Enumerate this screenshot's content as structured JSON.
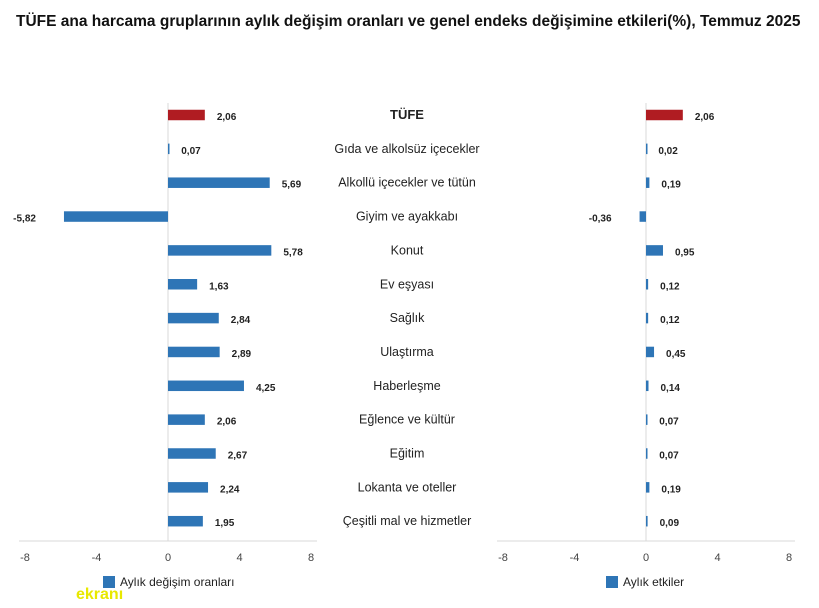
{
  "title": "TÜFE ana harcama gruplarının aylık değişim oranları ve genel endeks değişimine etkileri(%), Temmuz 2025",
  "colors": {
    "highlight": "#b01c22",
    "bar": "#2e75b6",
    "axis": "#d9d9d9",
    "text": "#222222"
  },
  "chart_data": {
    "type": "bar",
    "orientation": "horizontal",
    "categories": [
      "TÜFE",
      "Gıda ve alkolsüz içecekler",
      "Alkollü içecekler ve tütün",
      "Giyim ve ayakkabı",
      "Konut",
      "Ev eşyası",
      "Sağlık",
      "Ulaştırma",
      "Haberleşme",
      "Eğlence ve kültür",
      "Eğitim",
      "Lokanta ve oteller",
      "Çeşitli mal ve hizmetler"
    ],
    "highlight_category": "TÜFE",
    "panels": [
      {
        "legend": "Aylık değişim oranları",
        "values": [
          2.06,
          0.07,
          5.69,
          -5.82,
          5.78,
          1.63,
          2.84,
          2.89,
          4.25,
          2.06,
          2.67,
          2.24,
          1.95
        ],
        "labels": [
          "2,06",
          "0,07",
          "5,69",
          "-5,82",
          "5,78",
          "1,63",
          "2,84",
          "2,89",
          "4,25",
          "2,06",
          "2,67",
          "2,24",
          "1,95"
        ],
        "xlim": [
          -8,
          8
        ],
        "ticks": [
          "-8",
          "-4",
          "0",
          "4",
          "8"
        ]
      },
      {
        "legend": "Aylık etkiler",
        "values": [
          2.06,
          0.02,
          0.19,
          -0.36,
          0.95,
          0.12,
          0.12,
          0.45,
          0.14,
          0.07,
          0.07,
          0.19,
          0.09
        ],
        "labels": [
          "2,06",
          "0,02",
          "0,19",
          "-0,36",
          "0,95",
          "0,12",
          "0,12",
          "0,45",
          "0,14",
          "0,07",
          "0,07",
          "0,19",
          "0,09"
        ],
        "xlim": [
          -8,
          8
        ],
        "ticks": [
          "-8",
          "-4",
          "0",
          "4",
          "8"
        ]
      }
    ],
    "legend_position": "bottom-left",
    "grid": false
  },
  "watermark": {
    "text": "ekranı"
  }
}
